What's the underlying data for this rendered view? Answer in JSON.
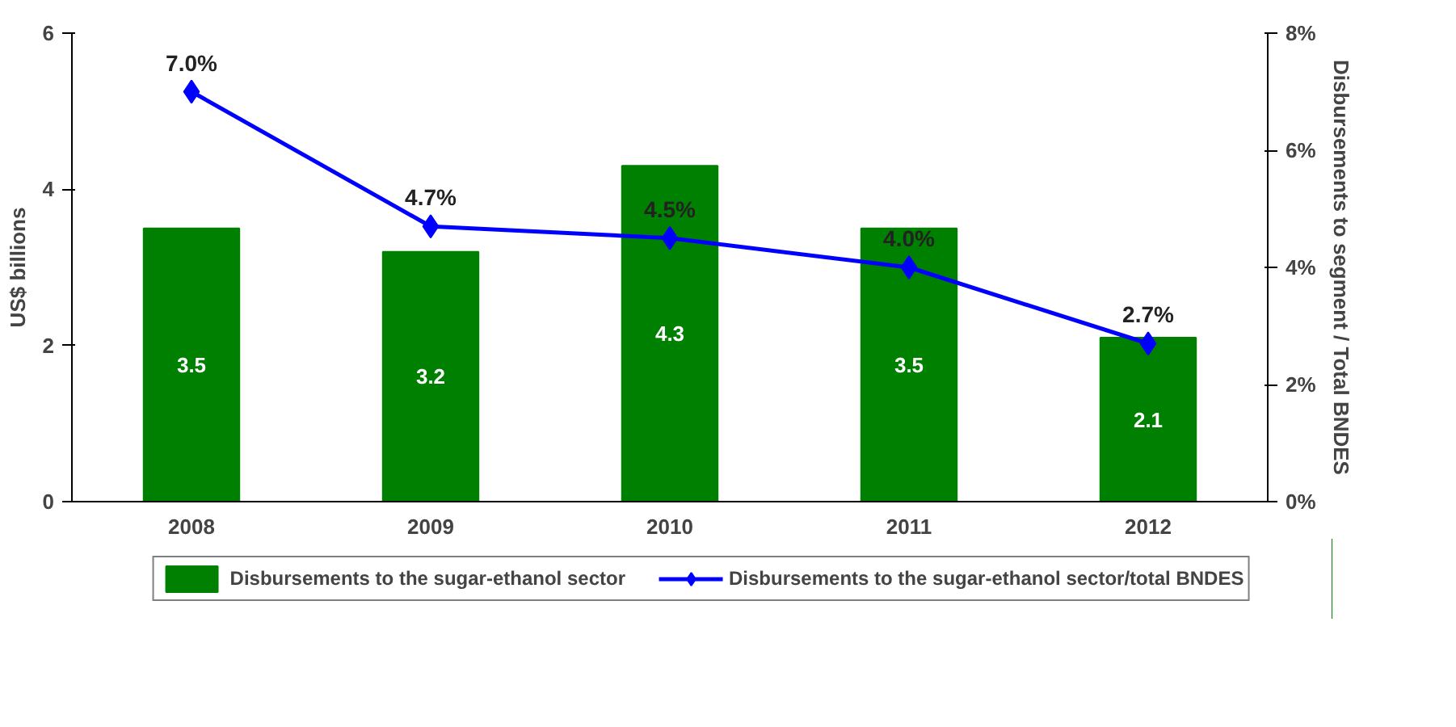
{
  "chart_data": {
    "type": "bar",
    "ylabel": "US$ billions",
    "y2label": "Disbursements to segment / Total BNDES",
    "categories": [
      "2008",
      "2009",
      "2010",
      "2011",
      "2012"
    ],
    "series": [
      {
        "name": "Disbursements to the sugar-ethanol sector",
        "color": "#008000",
        "values": [
          3.5,
          3.2,
          4.3,
          3.5,
          2.1
        ],
        "value_labels": [
          "3.5",
          "3.2",
          "4.3",
          "3.5",
          "2.1"
        ]
      },
      {
        "name": "Disbursements to the sugar-ethanol sector/total BNDES",
        "type": "line",
        "axis": "y2",
        "color": "#0000ff",
        "values": [
          7.0,
          4.7,
          4.5,
          4.0,
          2.7
        ],
        "value_labels": [
          "7.0%",
          "4.7%",
          "4.5%",
          "4.0%",
          "2.7%"
        ],
        "marker": "diamond"
      }
    ],
    "ylim": [
      0,
      6
    ],
    "yticks": [
      0,
      2,
      4,
      6
    ],
    "y2lim": [
      0,
      8
    ],
    "y2ticks": [
      {
        "value": 0,
        "label": "0%"
      },
      {
        "value": 2,
        "label": "2%"
      },
      {
        "value": 4,
        "label": "4%"
      },
      {
        "value": 6,
        "label": "6%"
      },
      {
        "value": 8,
        "label": "8%"
      }
    ],
    "grid": false,
    "legend": "bottom"
  }
}
